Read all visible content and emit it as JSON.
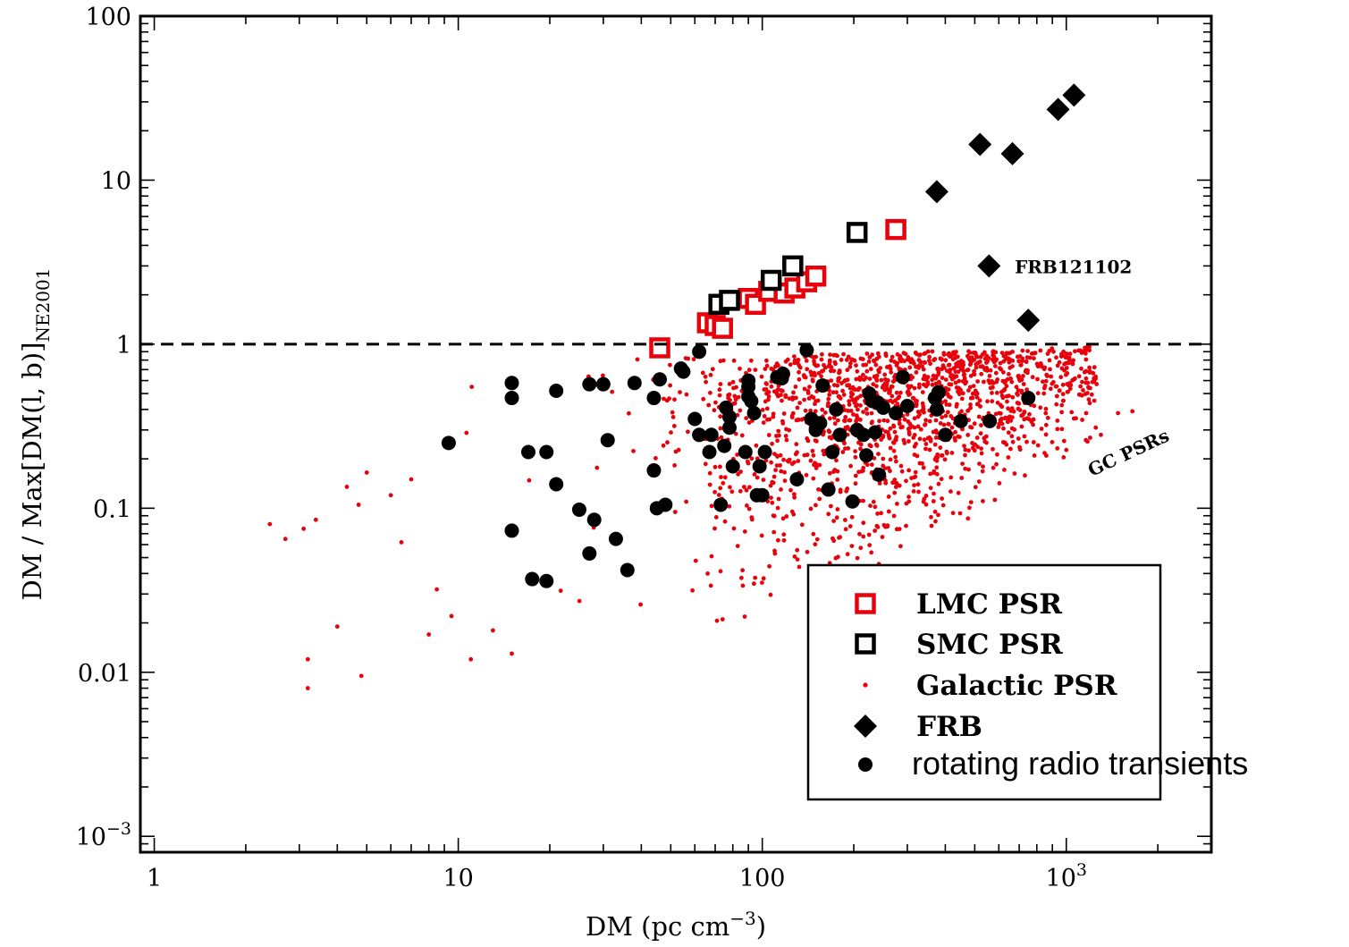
{
  "chart_data": {
    "type": "scatter",
    "xlabel_main": "DM (pc cm",
    "xlabel_sup": "−3",
    "xlabel_close": ")",
    "ylabel_main": "DM / Max[DM(l, b)]",
    "ylabel_sub": "NE2001",
    "x_scale": "log",
    "y_scale": "log",
    "xlim": [
      0.9,
      3000
    ],
    "ylim": [
      0.0008,
      100
    ],
    "x_ticks": [
      {
        "value": 1,
        "label": "1"
      },
      {
        "value": 10,
        "label": "10"
      },
      {
        "value": 100,
        "label": "100"
      },
      {
        "value": 1000,
        "label": "10",
        "sup": "3"
      }
    ],
    "y_ticks": [
      {
        "value": 0.001,
        "label": "10",
        "sup": "−3"
      },
      {
        "value": 0.01,
        "label": "0.01"
      },
      {
        "value": 0.1,
        "label": "0.1"
      },
      {
        "value": 1,
        "label": "1"
      },
      {
        "value": 10,
        "label": "10"
      },
      {
        "value": 100,
        "label": "100"
      }
    ],
    "reference_line": {
      "y": 1,
      "style": "dashed"
    },
    "grid": false,
    "legend_position": "bottom-right",
    "legend": [
      {
        "label": "LMC PSR",
        "marker": "open-square",
        "color": "#e8000b"
      },
      {
        "label": "SMC PSR",
        "marker": "open-square",
        "color": "#000000"
      },
      {
        "label": "Galactic PSR",
        "marker": "small-dot",
        "color": "#e8000b"
      },
      {
        "label": "FRB",
        "marker": "diamond",
        "color": "#000000"
      },
      {
        "label": "rotating radio transients",
        "marker": "dot",
        "color": "#000000"
      }
    ],
    "annotations": [
      {
        "text": "FRB121102",
        "x": 560,
        "y": 3.0
      },
      {
        "text": "GC PSRs",
        "x": 1700,
        "y": 0.2
      }
    ],
    "series": [
      {
        "name": "LMC PSR",
        "marker": "open-square",
        "color": "#e8000b",
        "points": [
          [
            46,
            0.95
          ],
          [
            66,
            1.35
          ],
          [
            70,
            1.3
          ],
          [
            74,
            1.25
          ],
          [
            90,
            1.9
          ],
          [
            95,
            1.75
          ],
          [
            105,
            2.1
          ],
          [
            118,
            2.05
          ],
          [
            128,
            2.2
          ],
          [
            140,
            2.4
          ],
          [
            150,
            2.6
          ],
          [
            275,
            5.0
          ]
        ]
      },
      {
        "name": "SMC PSR",
        "marker": "open-square",
        "color": "#000000",
        "points": [
          [
            72,
            1.75
          ],
          [
            78,
            1.85
          ],
          [
            107,
            2.45
          ],
          [
            126,
            3.0
          ],
          [
            205,
            4.8
          ]
        ]
      },
      {
        "name": "FRB",
        "marker": "diamond",
        "color": "#000000",
        "points": [
          [
            375,
            8.5
          ],
          [
            520,
            16.5
          ],
          [
            665,
            14.5
          ],
          [
            940,
            27
          ],
          [
            1060,
            33
          ],
          [
            557,
            3.0
          ],
          [
            750,
            1.4
          ]
        ]
      },
      {
        "name": "rotating radio transients",
        "marker": "dot",
        "color": "#000000",
        "points": [
          [
            9.3,
            0.25
          ],
          [
            15,
            0.58
          ],
          [
            15,
            0.47
          ],
          [
            15,
            0.073
          ],
          [
            17,
            0.22
          ],
          [
            17.5,
            0.037
          ],
          [
            19.5,
            0.22
          ],
          [
            19.5,
            0.036
          ],
          [
            21,
            0.52
          ],
          [
            21,
            0.14
          ],
          [
            25,
            0.098
          ],
          [
            27,
            0.57
          ],
          [
            27,
            0.053
          ],
          [
            28,
            0.085
          ],
          [
            30,
            0.57
          ],
          [
            31,
            0.26
          ],
          [
            33,
            0.065
          ],
          [
            36,
            0.042
          ],
          [
            38,
            0.58
          ],
          [
            44,
            0.47
          ],
          [
            44,
            0.17
          ],
          [
            45,
            0.1
          ],
          [
            46,
            0.61
          ],
          [
            48,
            0.105
          ],
          [
            54,
            0.71
          ],
          [
            55,
            0.68
          ],
          [
            60,
            0.35
          ],
          [
            62,
            0.28
          ],
          [
            62,
            0.9
          ],
          [
            67,
            0.22
          ],
          [
            68,
            0.28
          ],
          [
            73,
            0.105
          ],
          [
            75,
            0.24
          ],
          [
            76,
            0.41
          ],
          [
            78,
            0.31
          ],
          [
            78,
            0.36
          ],
          [
            80,
            0.18
          ],
          [
            88,
            0.22
          ],
          [
            90,
            0.6
          ],
          [
            90,
            0.48
          ],
          [
            90,
            0.55
          ],
          [
            92,
            0.45
          ],
          [
            94,
            0.38
          ],
          [
            96,
            0.12
          ],
          [
            98,
            0.18
          ],
          [
            100,
            0.12
          ],
          [
            102,
            0.22
          ],
          [
            112,
            0.63
          ],
          [
            116,
            0.62
          ],
          [
            117,
            0.66
          ],
          [
            130,
            0.15
          ],
          [
            140,
            0.92
          ],
          [
            145,
            0.35
          ],
          [
            150,
            0.3
          ],
          [
            155,
            0.33
          ],
          [
            158,
            0.56
          ],
          [
            165,
            0.13
          ],
          [
            170,
            0.22
          ],
          [
            175,
            0.4
          ],
          [
            180,
            0.28
          ],
          [
            198,
            0.11
          ],
          [
            205,
            0.3
          ],
          [
            215,
            0.28
          ],
          [
            220,
            0.21
          ],
          [
            225,
            0.5
          ],
          [
            230,
            0.45
          ],
          [
            235,
            0.29
          ],
          [
            240,
            0.44
          ],
          [
            242,
            0.16
          ],
          [
            250,
            0.41
          ],
          [
            275,
            0.38
          ],
          [
            290,
            0.63
          ],
          [
            300,
            0.42
          ],
          [
            370,
            0.47
          ],
          [
            375,
            0.4
          ],
          [
            380,
            0.51
          ],
          [
            400,
            0.28
          ],
          [
            450,
            0.34
          ],
          [
            560,
            0.34
          ],
          [
            750,
            0.47
          ]
        ]
      },
      {
        "name": "Galactic PSR",
        "marker": "small-dot",
        "color": "#e8000b",
        "generated_from": "distribution",
        "sample_count": 1600,
        "outliers": [
          [
            2.4,
            0.08
          ],
          [
            2.7,
            0.065
          ],
          [
            3.1,
            0.075
          ],
          [
            3.2,
            0.012
          ],
          [
            3.2,
            0.008
          ],
          [
            3.4,
            0.085
          ],
          [
            4,
            0.019
          ],
          [
            4.3,
            0.135
          ],
          [
            4.7,
            0.105
          ],
          [
            4.8,
            0.0095
          ],
          [
            5,
            0.165
          ],
          [
            6,
            0.12
          ],
          [
            6.5,
            0.062
          ],
          [
            7,
            0.15
          ],
          [
            8,
            0.017
          ],
          [
            8.5,
            0.032
          ],
          [
            9.5,
            0.022
          ],
          [
            11,
            0.012
          ],
          [
            13,
            0.018
          ],
          [
            15,
            0.013
          ],
          [
            1480,
            0.38
          ],
          [
            1650,
            0.39
          ],
          [
            1160,
            0.26
          ],
          [
            1250,
            0.31
          ],
          [
            1300,
            0.28
          ]
        ]
      }
    ]
  }
}
